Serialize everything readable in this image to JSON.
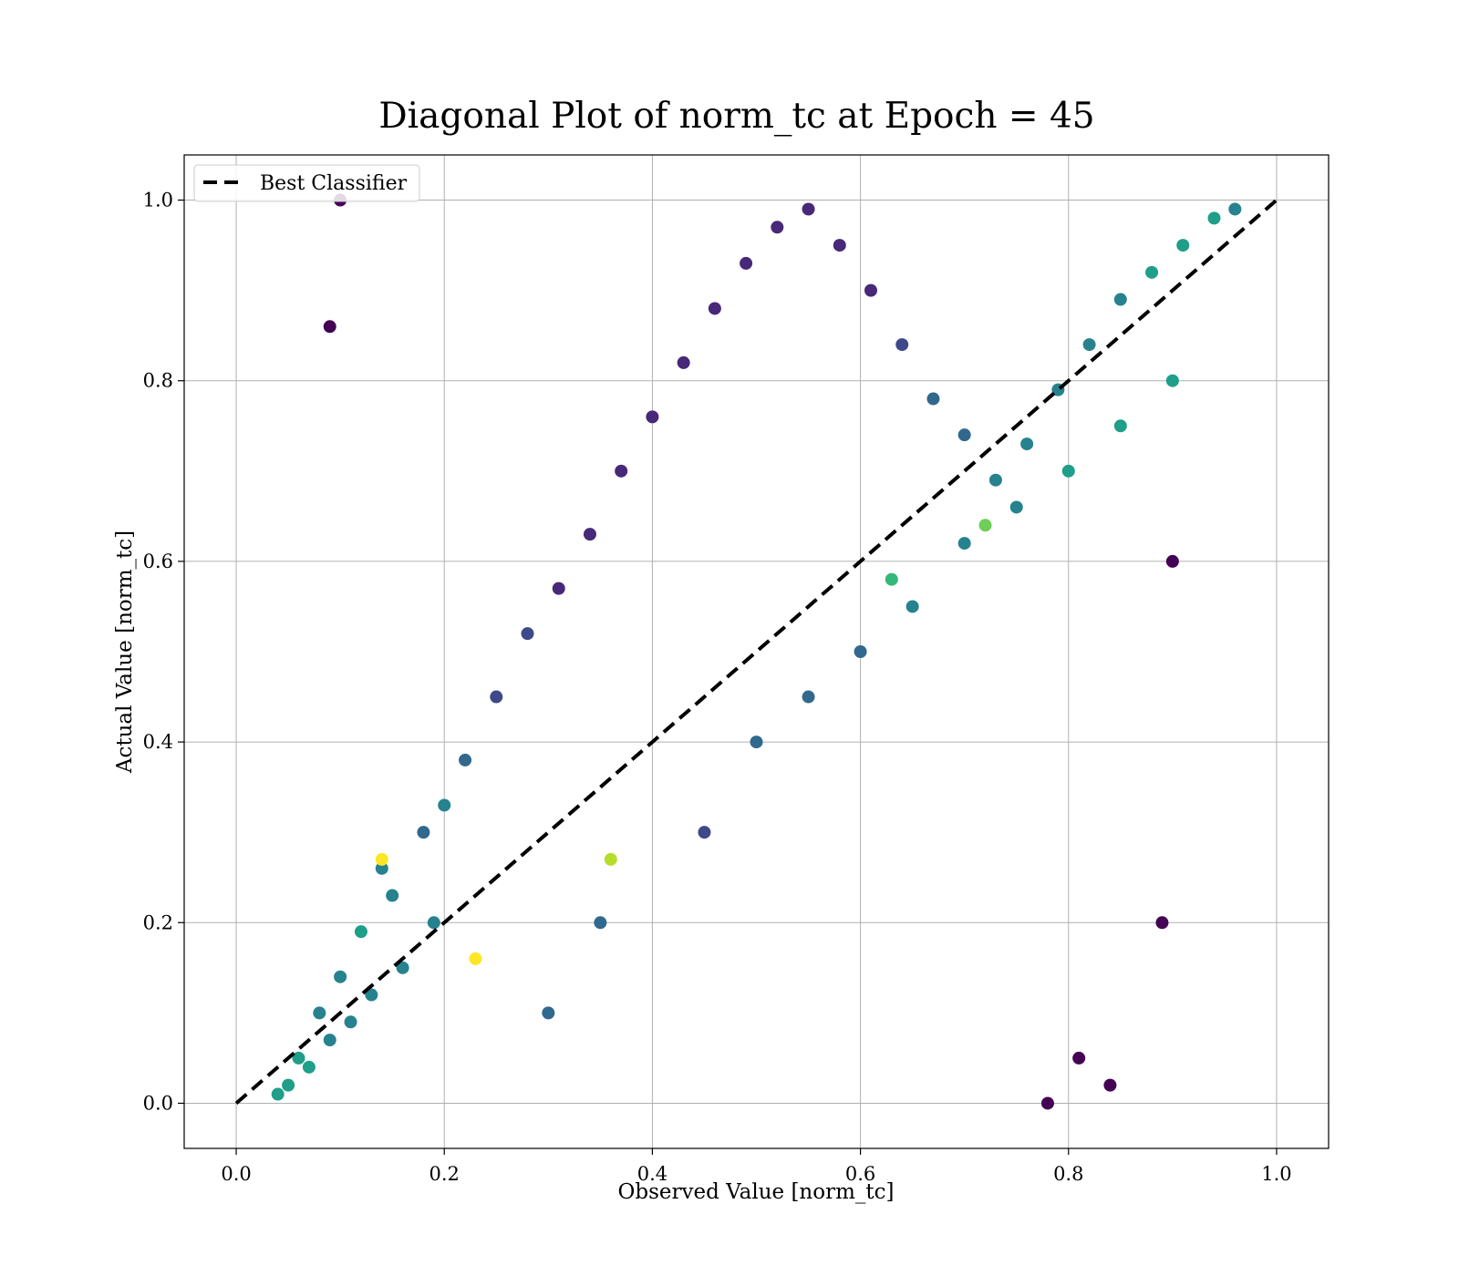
{
  "chart_data": {
    "type": "scatter",
    "title": "Diagonal Plot of norm_tc at Epoch = 45",
    "xlabel": "Observed Value [norm_tc]",
    "ylabel": "Actual Value [norm_tc]",
    "xlim": [
      -0.05,
      1.05
    ],
    "ylim": [
      -0.05,
      1.05
    ],
    "x_ticks": [
      "0.0",
      "0.2",
      "0.4",
      "0.6",
      "0.8",
      "1.0"
    ],
    "y_ticks": [
      "0.0",
      "0.2",
      "0.4",
      "0.6",
      "0.8",
      "1.0"
    ],
    "grid": true,
    "legend": {
      "placement": "top-left",
      "entries": [
        "Best Classifier"
      ]
    },
    "reference_line": {
      "name": "Best Classifier",
      "x": [
        0.0,
        1.0
      ],
      "y": [
        0.0,
        1.0
      ],
      "style": "dashed",
      "color": "#000000"
    },
    "point_colormap": "viridis",
    "colors": {
      "viridis": [
        "#440154",
        "#482878",
        "#3e4989",
        "#31688e",
        "#26828e",
        "#1f9e89",
        "#35b779",
        "#6ece58",
        "#b5de2b",
        "#fde725"
      ]
    },
    "series": [
      {
        "x": [
          0.04,
          0.06,
          0.08,
          0.1,
          0.12,
          0.15,
          0.05,
          0.09,
          0.13,
          0.18,
          0.07,
          0.11,
          0.16,
          0.2,
          0.14,
          0.19,
          0.22,
          0.25,
          0.28,
          0.31,
          0.34,
          0.37,
          0.4,
          0.43,
          0.46,
          0.49,
          0.52,
          0.55,
          0.58,
          0.61,
          0.64,
          0.67,
          0.7,
          0.73,
          0.76,
          0.79,
          0.82,
          0.85,
          0.88,
          0.91,
          0.94,
          0.96,
          0.3,
          0.35,
          0.45,
          0.5,
          0.55,
          0.6,
          0.65,
          0.7,
          0.75,
          0.8,
          0.85,
          0.9,
          0.09,
          0.1,
          0.14,
          0.84,
          0.89,
          0.9,
          0.81,
          0.78,
          0.23,
          0.36,
          0.72,
          0.63
        ],
        "y": [
          0.01,
          0.05,
          0.1,
          0.14,
          0.19,
          0.23,
          0.02,
          0.07,
          0.12,
          0.3,
          0.04,
          0.09,
          0.15,
          0.33,
          0.26,
          0.2,
          0.38,
          0.45,
          0.52,
          0.57,
          0.63,
          0.7,
          0.76,
          0.82,
          0.88,
          0.93,
          0.97,
          0.99,
          0.95,
          0.9,
          0.84,
          0.78,
          0.74,
          0.69,
          0.73,
          0.79,
          0.84,
          0.89,
          0.92,
          0.95,
          0.98,
          0.99,
          0.1,
          0.2,
          0.3,
          0.4,
          0.45,
          0.5,
          0.55,
          0.62,
          0.66,
          0.7,
          0.75,
          0.8,
          0.86,
          1.0,
          0.27,
          0.02,
          0.2,
          0.6,
          0.05,
          0.0,
          0.16,
          0.27,
          0.64,
          0.58
        ],
        "c": [
          0.55,
          0.5,
          0.45,
          0.45,
          0.5,
          0.4,
          0.55,
          0.45,
          0.4,
          0.35,
          0.55,
          0.45,
          0.45,
          0.4,
          0.4,
          0.45,
          0.3,
          0.25,
          0.2,
          0.15,
          0.15,
          0.15,
          0.15,
          0.1,
          0.1,
          0.1,
          0.1,
          0.1,
          0.1,
          0.15,
          0.2,
          0.3,
          0.35,
          0.4,
          0.4,
          0.45,
          0.45,
          0.45,
          0.5,
          0.5,
          0.5,
          0.45,
          0.35,
          0.3,
          0.25,
          0.3,
          0.35,
          0.35,
          0.4,
          0.45,
          0.45,
          0.5,
          0.5,
          0.55,
          0.0,
          0.05,
          0.95,
          0.0,
          0.0,
          0.0,
          0.05,
          0.0,
          0.95,
          0.9,
          0.8,
          0.7
        ]
      }
    ]
  }
}
